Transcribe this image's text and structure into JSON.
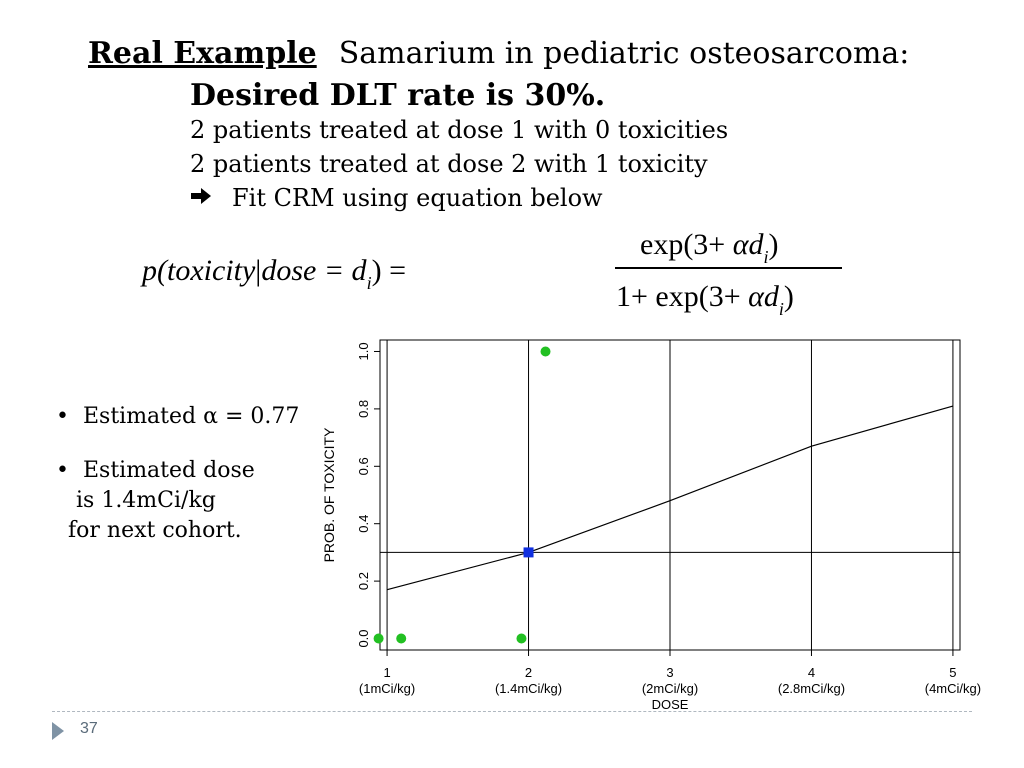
{
  "slide": {
    "heading_label": "Real Example",
    "heading_text": "Samarium in pediatric osteosarcoma:",
    "subheading": "Desired DLT rate is 30%.",
    "lines": [
      "2 patients treated at dose 1 with 0 toxicities",
      "2 patients treated at dose 2 with 1 toxicity",
      "Fit CRM using equation below"
    ],
    "formula": {
      "lhs_p": "p(",
      "lhs_toxicity": "toxicity",
      "lhs_bar": "|",
      "lhs_dose": "dose",
      "lhs_eq": " = d",
      "lhs_sub": "i",
      "lhs_close": ") =",
      "num_pre": "exp(3+ ",
      "num_alpha": "αd",
      "num_sub": "i",
      "num_post": ")",
      "den_pre": "1+ exp(3+ ",
      "den_alpha": "αd",
      "den_sub": "i",
      "den_post": ")"
    },
    "bullets": [
      "Estimated α = 0.77",
      "Estimated dose",
      "is 1.4mCi/kg",
      "for next cohort."
    ],
    "page_number": "37"
  },
  "chart_data": {
    "type": "line",
    "xlabel": "DOSE",
    "ylabel": "PROB. OF TOXICITY",
    "xlim": [
      0.95,
      5.05
    ],
    "ylim": [
      -0.04,
      1.04
    ],
    "x_ticks": [
      {
        "value": 1,
        "label": "1",
        "sublabel": "(1mCi/kg)"
      },
      {
        "value": 2,
        "label": "2",
        "sublabel": "(1.4mCi/kg)"
      },
      {
        "value": 3,
        "label": "3",
        "sublabel": "(2mCi/kg)"
      },
      {
        "value": 4,
        "label": "4",
        "sublabel": "(2.8mCi/kg)"
      },
      {
        "value": 5,
        "label": "5",
        "sublabel": "(4mCi/kg)"
      }
    ],
    "y_ticks": [
      0.0,
      0.2,
      0.4,
      0.6,
      0.8,
      1.0
    ],
    "y_tick_labels": [
      "0.0",
      "0.2",
      "0.4",
      "0.6",
      "0.8",
      "1.0"
    ],
    "curve": {
      "x": [
        1,
        2,
        3,
        4,
        5
      ],
      "y": [
        0.17,
        0.3,
        0.48,
        0.67,
        0.81
      ]
    },
    "vertical_lines": [
      1,
      2,
      3,
      4,
      5
    ],
    "target_line": 0.3,
    "observations": [
      {
        "x": 0.94,
        "y": 0.0
      },
      {
        "x": 1.1,
        "y": 0.0
      },
      {
        "x": 1.95,
        "y": 0.0
      },
      {
        "x": 2.12,
        "y": 1.0
      }
    ],
    "estimate": {
      "x": 2,
      "y": 0.3
    },
    "colors": {
      "observation": "#22c022",
      "estimate": "#1030e0",
      "line": "#000000"
    }
  }
}
